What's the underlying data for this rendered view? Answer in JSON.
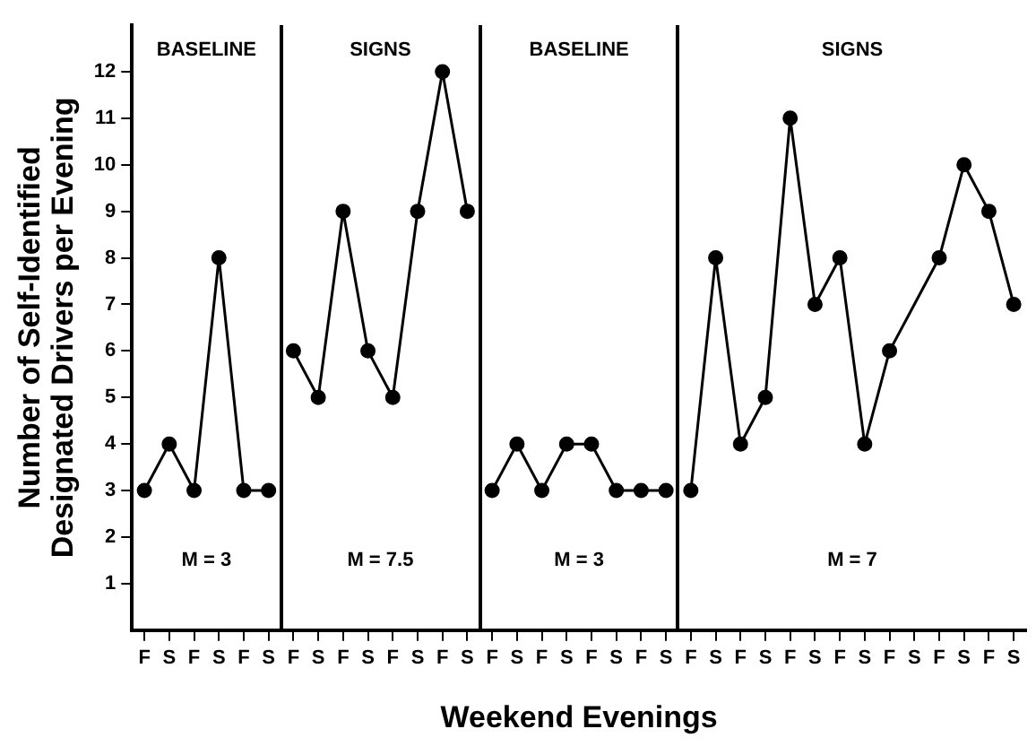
{
  "chart_data": {
    "type": "line",
    "xlabel": "Weekend Evenings",
    "ylabel": "Number of Self-Identified\nDesignated Drivers per Evening",
    "categories": [
      "F",
      "S",
      "F",
      "S",
      "F",
      "S",
      "F",
      "S",
      "F",
      "S",
      "F",
      "S",
      "F",
      "S",
      "F",
      "S",
      "F",
      "S",
      "F",
      "S",
      "F",
      "S",
      "F",
      "S",
      "F",
      "S",
      "F",
      "S",
      "F",
      "S",
      "F",
      "S",
      "F",
      "S",
      "F",
      "S"
    ],
    "ylim": [
      0,
      13
    ],
    "yticks": [
      1,
      2,
      3,
      4,
      5,
      6,
      7,
      8,
      9,
      10,
      11,
      12
    ],
    "series": [
      {
        "color": "#000000",
        "values": [
          3,
          4,
          3,
          8,
          3,
          3,
          null,
          null,
          null,
          null,
          null,
          null,
          null,
          null,
          null,
          null,
          null,
          null,
          null,
          null,
          null,
          null,
          null,
          null,
          null,
          null,
          null,
          null,
          null,
          null,
          null,
          null,
          null,
          null,
          null,
          null
        ]
      },
      {
        "color": "#000000",
        "values": [
          null,
          null,
          null,
          null,
          null,
          null,
          6,
          5,
          9,
          6,
          5,
          9,
          12,
          9,
          null,
          null,
          null,
          null,
          null,
          null,
          null,
          null,
          null,
          null,
          null,
          null,
          null,
          null,
          null,
          null,
          null,
          null,
          null,
          null,
          null,
          null
        ]
      },
      {
        "color": "#000000",
        "values": [
          null,
          null,
          null,
          null,
          null,
          null,
          null,
          null,
          null,
          null,
          null,
          null,
          null,
          null,
          3,
          4,
          3,
          4,
          4,
          3,
          3,
          3,
          null,
          null,
          null,
          null,
          null,
          null,
          null,
          null,
          null,
          null,
          null,
          null,
          null,
          null
        ]
      },
      {
        "color": "#000000",
        "values": [
          null,
          null,
          null,
          null,
          null,
          null,
          null,
          null,
          null,
          null,
          null,
          null,
          null,
          null,
          null,
          null,
          null,
          null,
          null,
          null,
          null,
          null,
          3,
          8,
          4,
          5,
          11,
          7,
          8,
          4,
          6,
          null,
          8,
          10,
          9,
          7
        ]
      }
    ],
    "annotations": [
      "BASELINE",
      "SIGNS",
      "BASELINE",
      "SIGNS",
      "M = 3",
      "M = 7.5",
      "M = 3",
      "M = 7"
    ],
    "grid": false,
    "legend": false,
    "marker": "circle",
    "line_style": "solid"
  }
}
